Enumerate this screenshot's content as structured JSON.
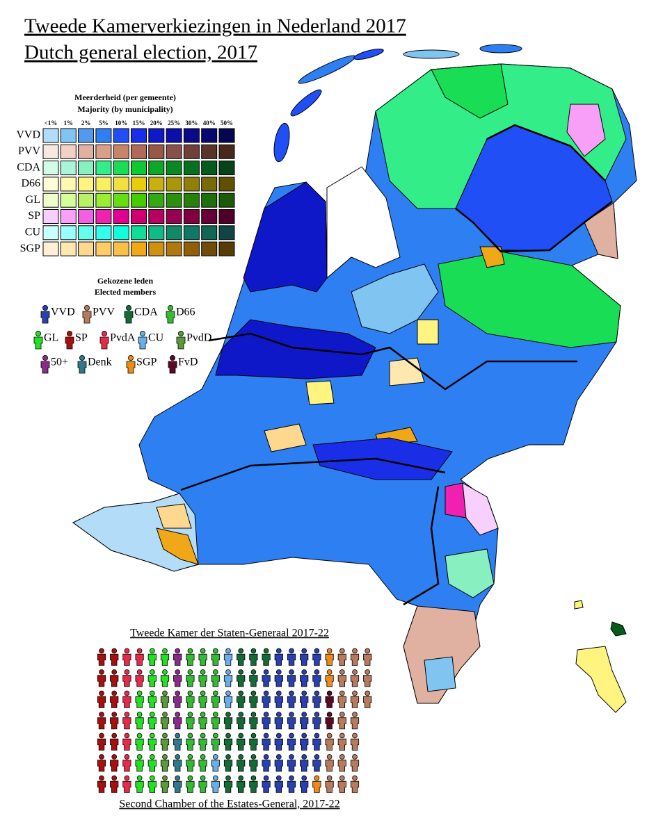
{
  "title": [
    "Tweede Kamerverkiezingen in Nederland 2017",
    "Dutch general election, 2017"
  ],
  "legend": {
    "title": "Meerderheid (per gemeente)",
    "subtitle": "Majority (by municipality)",
    "levels": [
      "<1%",
      "1%",
      "2%",
      "5%",
      "10%",
      "15%",
      "20%",
      "25%",
      "30%",
      "40%",
      "50%"
    ],
    "parties": [
      {
        "name": "VVD",
        "colors": [
          "#b3dcf8",
          "#80c4f2",
          "#5599ee",
          "#2e7ff2",
          "#1f4ff5",
          "#1a2ee8",
          "#0f18c8",
          "#0b0ea8",
          "#080a88",
          "#060870",
          "#050550"
        ]
      },
      {
        "name": "PVV",
        "colors": [
          "#f8e8e0",
          "#f2d0c4",
          "#e0b0a0",
          "#d8a088",
          "#c8846a",
          "#b06a58",
          "#985848",
          "#88504a",
          "#704038",
          "#5a3428",
          "#48281c"
        ]
      },
      {
        "name": "CDA",
        "colors": [
          "#d0fce8",
          "#aaf5d8",
          "#88f0c0",
          "#33ee88",
          "#18dd55",
          "#10c830",
          "#0ea828",
          "#0a8822",
          "#087020",
          "#065a1c",
          "#044418"
        ]
      },
      {
        "name": "D66",
        "colors": [
          "#fffcd8",
          "#fff8b0",
          "#fff480",
          "#f8f060",
          "#f0e040",
          "#e8cc10",
          "#c8b010",
          "#a89808",
          "#908008",
          "#786a08",
          "#605000"
        ]
      },
      {
        "name": "GL",
        "colors": [
          "#eeffcc",
          "#d4ff99",
          "#b8f066",
          "#99ee33",
          "#66dd11",
          "#44cc00",
          "#33aa11",
          "#2b9010",
          "#28800c",
          "#1f700c",
          "#1a5a08"
        ]
      },
      {
        "name": "SP",
        "colors": [
          "#f8d0ff",
          "#f8a0f8",
          "#f060e0",
          "#f020b0",
          "#e00090",
          "#d00070",
          "#b80060",
          "#980050",
          "#800040",
          "#680038",
          "#500028"
        ]
      },
      {
        "name": "CU",
        "colors": [
          "#ccffff",
          "#99ffff",
          "#66ffee",
          "#33ffee",
          "#11ffdd",
          "#11dd99",
          "#11bb88",
          "#118866",
          "#117766",
          "#116655",
          "#114444"
        ]
      },
      {
        "name": "SGP",
        "colors": [
          "#fff0d8",
          "#ffe8b0",
          "#ffd890",
          "#ffcc66",
          "#f8c048",
          "#f0a818",
          "#d09010",
          "#b07810",
          "#906008",
          "#704c08",
          "#583c08"
        ]
      }
    ]
  },
  "elected": {
    "title": "Gekozene leden",
    "subtitle": "Elected members",
    "parties": [
      {
        "name": "VVD",
        "color": "#2a3fb0",
        "seats": 33
      },
      {
        "name": "PVV",
        "color": "#b87a5c",
        "seats": 20
      },
      {
        "name": "CDA",
        "color": "#136b35",
        "seats": 19
      },
      {
        "name": "D66",
        "color": "#33bb33",
        "seats": 19
      },
      {
        "name": "GL",
        "color": "#22e022",
        "seats": 14
      },
      {
        "name": "SP",
        "color": "#a81010",
        "seats": 14
      },
      {
        "name": "PvdA",
        "color": "#e82a48",
        "seats": 9
      },
      {
        "name": "CU",
        "color": "#6aaee8",
        "seats": 5
      },
      {
        "name": "PvdD",
        "color": "#5a9a38",
        "seats": 5
      },
      {
        "name": "50+",
        "color": "#8a2a8a",
        "seats": 4
      },
      {
        "name": "Denk",
        "color": "#2f7a8a",
        "seats": 3
      },
      {
        "name": "SGP",
        "color": "#ee8a16",
        "seats": 3
      },
      {
        "name": "FvD",
        "color": "#5a0a22",
        "seats": 2
      }
    ]
  },
  "chamber": {
    "title": "Tweede Kamer der Staten-Generaal 2017-22",
    "subtitle": "Second Chamber of the Estates-General, 2017-22"
  }
}
